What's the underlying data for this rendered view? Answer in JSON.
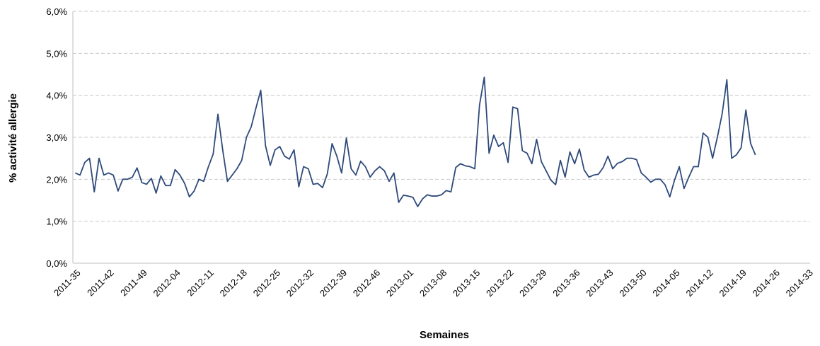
{
  "chart_data": {
    "type": "line",
    "x_label": "Semaines",
    "y_label": "% activité allergie",
    "categories": [
      "2011-35",
      null,
      null,
      null,
      null,
      null,
      null,
      "2011-42",
      null,
      null,
      null,
      null,
      null,
      null,
      "2011-49",
      null,
      null,
      null,
      null,
      null,
      null,
      "2012-04",
      null,
      null,
      null,
      null,
      null,
      null,
      "2012-11",
      null,
      null,
      null,
      null,
      null,
      null,
      "2012-18",
      null,
      null,
      null,
      null,
      null,
      null,
      "2012-25",
      null,
      null,
      null,
      null,
      null,
      null,
      "2012-32",
      null,
      null,
      null,
      null,
      null,
      null,
      "2012-39",
      null,
      null,
      null,
      null,
      null,
      null,
      "2012-46",
      null,
      null,
      null,
      null,
      null,
      null,
      "2013-01",
      null,
      null,
      null,
      null,
      null,
      null,
      "2013-08",
      null,
      null,
      null,
      null,
      null,
      null,
      "2013-15",
      null,
      null,
      null,
      null,
      null,
      null,
      "2013-22",
      null,
      null,
      null,
      null,
      null,
      null,
      "2013-29",
      null,
      null,
      null,
      null,
      null,
      null,
      "2013-36",
      null,
      null,
      null,
      null,
      null,
      null,
      "2013-43",
      null,
      null,
      null,
      null,
      null,
      null,
      "2013-50",
      null,
      null,
      null,
      null,
      null,
      null,
      "2014-05",
      null,
      null,
      null,
      null,
      null,
      null,
      "2014-12",
      null,
      null,
      null,
      null,
      null,
      null,
      "2014-19",
      null,
      null,
      null,
      null,
      null,
      null,
      "2014-26",
      null,
      null,
      null,
      null,
      null,
      null,
      "2014-33"
    ],
    "series": [
      {
        "color": "#2e4a7a",
        "values": [
          2.15,
          2.1,
          2.4,
          2.5,
          1.7,
          2.5,
          2.1,
          2.15,
          2.1,
          1.72,
          2.0,
          2.0,
          2.05,
          2.27,
          1.92,
          1.88,
          2.02,
          1.67,
          2.08,
          1.85,
          1.85,
          2.23,
          2.1,
          1.9,
          1.58,
          1.72,
          2.0,
          1.95,
          2.3,
          2.6,
          3.55,
          2.7,
          1.95,
          2.1,
          2.25,
          2.45,
          3.0,
          3.25,
          3.7,
          4.12,
          2.8,
          2.33,
          2.7,
          2.78,
          2.55,
          2.48,
          2.7,
          1.82,
          2.3,
          2.25,
          1.88,
          1.9,
          1.8,
          2.13,
          2.85,
          2.55,
          2.15,
          2.98,
          2.25,
          2.1,
          2.43,
          2.3,
          2.05,
          2.2,
          2.3,
          2.2,
          1.95,
          2.15,
          1.45,
          1.62,
          1.6,
          1.57,
          1.35,
          1.53,
          1.63,
          1.6,
          1.6,
          1.63,
          1.73,
          1.7,
          2.28,
          2.37,
          2.32,
          2.3,
          2.25,
          3.77,
          4.43,
          2.62,
          3.05,
          2.78,
          2.87,
          2.4,
          3.72,
          3.68,
          2.68,
          2.62,
          2.37,
          2.95,
          2.42,
          2.2,
          1.98,
          1.87,
          2.45,
          2.05,
          2.65,
          2.37,
          2.72,
          2.22,
          2.05,
          2.1,
          2.12,
          2.28,
          2.55,
          2.25,
          2.38,
          2.42,
          2.5,
          2.5,
          2.47,
          2.15,
          2.05,
          1.93,
          2.0,
          2.0,
          1.87,
          1.58,
          1.98,
          2.3,
          1.78,
          2.05,
          2.3,
          2.3,
          3.1,
          3.0,
          2.5,
          3.0,
          3.55,
          4.37,
          2.5,
          2.58,
          2.75,
          3.65,
          2.85,
          2.58,
          null,
          null,
          null,
          null,
          null,
          null,
          null,
          null,
          null,
          null,
          null
        ]
      }
    ],
    "ylim": [
      0,
      6
    ],
    "yticks": [
      {
        "value": 0,
        "label": "0,0%"
      },
      {
        "value": 1,
        "label": "1,0%"
      },
      {
        "value": 2,
        "label": "2,0%"
      },
      {
        "value": 3,
        "label": "3,0%"
      },
      {
        "value": 4,
        "label": "4,0%"
      },
      {
        "value": 5,
        "label": "5,0%"
      },
      {
        "value": 6,
        "label": "6,0%"
      }
    ],
    "grid": true
  }
}
